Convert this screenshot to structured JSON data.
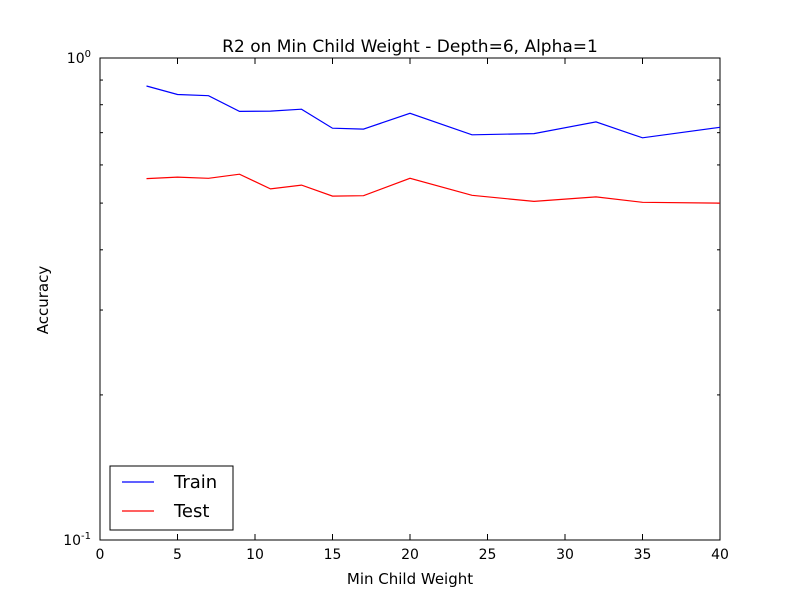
{
  "chart_data": {
    "type": "line",
    "title": "R2 on Min Child Weight - Depth=6, Alpha=1",
    "xlabel": "Min Child Weight",
    "ylabel": "Accuracy",
    "xlim": [
      0,
      40
    ],
    "ylim": [
      0.1,
      1.0
    ],
    "yscale": "log",
    "grid": false,
    "legend_position": "lower-left",
    "x_ticks": [
      "0",
      "5",
      "10",
      "15",
      "20",
      "25",
      "30",
      "35",
      "40"
    ],
    "y_ticks": [
      {
        "base": "10",
        "exp": "0"
      },
      {
        "base": "10",
        "exp": "-1"
      }
    ],
    "x": [
      3,
      5,
      7,
      9,
      11,
      13,
      15,
      17,
      20,
      24,
      28,
      32,
      35,
      40
    ],
    "series": [
      {
        "name": "Train",
        "color": "#0000ff",
        "values": [
          0.875,
          0.84,
          0.835,
          0.775,
          0.776,
          0.783,
          0.715,
          0.712,
          0.768,
          0.693,
          0.697,
          0.737,
          0.683,
          0.718
        ]
      },
      {
        "name": "Test",
        "color": "#ff0000",
        "values": [
          0.562,
          0.566,
          0.563,
          0.574,
          0.535,
          0.545,
          0.517,
          0.518,
          0.563,
          0.519,
          0.504,
          0.515,
          0.502,
          0.5
        ]
      }
    ]
  }
}
